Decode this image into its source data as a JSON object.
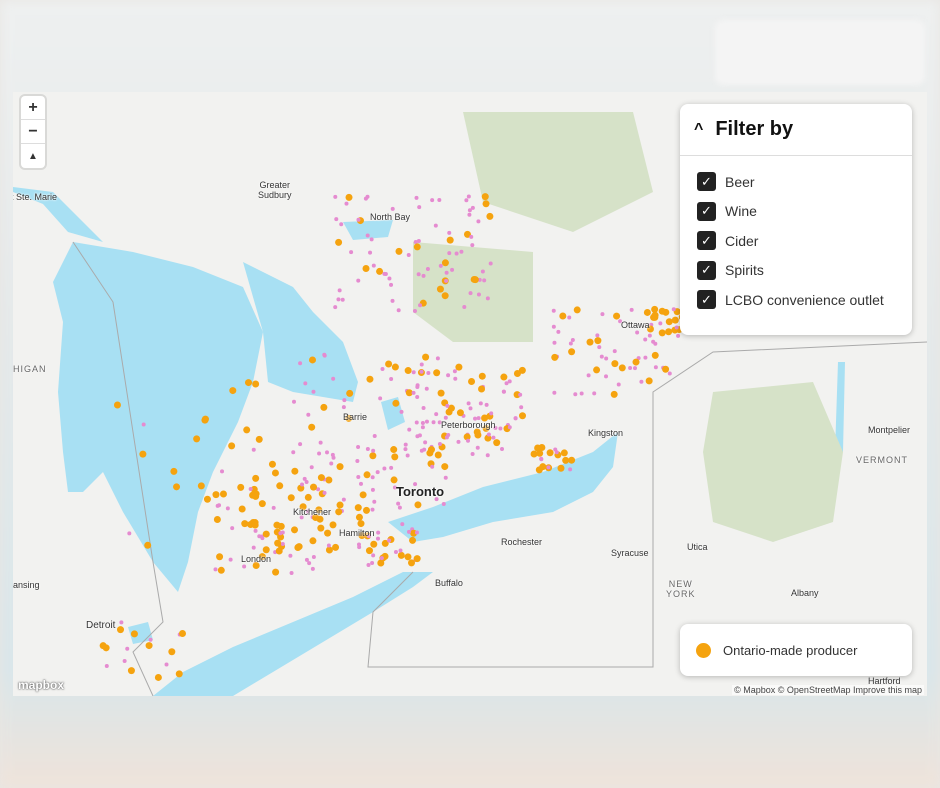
{
  "controls": {
    "zoom_in": "+",
    "zoom_out": "−",
    "compass": "▲"
  },
  "filter": {
    "title": "Filter by",
    "chevron": "^",
    "options": [
      {
        "label": "Beer",
        "checked": true
      },
      {
        "label": "Wine",
        "checked": true
      },
      {
        "label": "Cider",
        "checked": true
      },
      {
        "label": "Spirits",
        "checked": true
      },
      {
        "label": "LCBO convenience outlet",
        "checked": true
      }
    ]
  },
  "legend": {
    "label": "Ontario-made producer",
    "color": "#f5a30f"
  },
  "colors": {
    "producer": "#f5a30f",
    "outlet": "#e58bd0",
    "water": "#a8e0f3",
    "park": "#d6e2c8",
    "land": "#f2f2f0"
  },
  "attribution": "© Mapbox © OpenStreetMap  Improve this map",
  "logo": "mapbox",
  "labels": {
    "sault": "lt Ste. Marie",
    "sudbury": "Greater\nSudbury",
    "northbay": "North Bay",
    "ottawa": "Ottawa",
    "barrie": "Barrie",
    "peterborough": "Peterborough",
    "kingston": "Kingston",
    "toronto": "Toronto",
    "kitchener": "Kitchener",
    "hamilton": "Hamilton",
    "london": "London",
    "rochester": "Rochester",
    "syracuse": "Syracuse",
    "utica": "Utica",
    "buffalo": "Buffalo",
    "detroit": "Detroit",
    "albany": "Albany",
    "montpelier": "Montpelier",
    "vermont": "VERMONT",
    "newyork": "NEW\nYORK",
    "hartford": "Hartford",
    "michigan": "HIGAN",
    "lansing": "ansing"
  }
}
